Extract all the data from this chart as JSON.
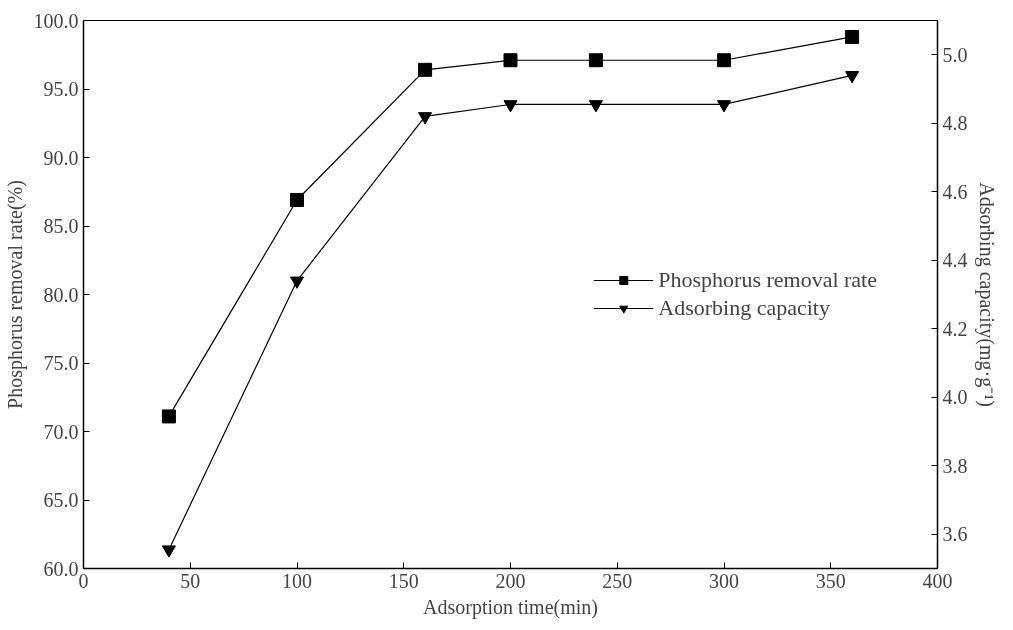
{
  "chart_data": {
    "type": "line",
    "xlabel": "Adsorption time(min)",
    "ylabel": "Phosphorus removal rate(%)",
    "y2label": "Adsorbing capacity(mg·g⁻¹)",
    "x": [
      40,
      100,
      160,
      200,
      240,
      300,
      360
    ],
    "series": [
      {
        "name": "Phosphorus removal rate",
        "color": "#000000",
        "marker": "square",
        "values": [
          71.1,
          86.9,
          96.4,
          97.1,
          97.1,
          97.1,
          98.8
        ]
      },
      {
        "name": "Adsorbing capacity",
        "color": "#000000",
        "marker": "triangle",
        "axis": "y2",
        "values": [
          3.555,
          4.34,
          4.82,
          4.855,
          4.855,
          4.855,
          4.94
        ]
      }
    ],
    "xlim": [
      0,
      400
    ],
    "xticks": [
      0,
      50,
      100,
      150,
      200,
      250,
      300,
      350,
      400
    ],
    "ylim": [
      60,
      100
    ],
    "yticks": [
      {
        "value": 60,
        "label": "60.0"
      },
      {
        "value": 65,
        "label": "65.0"
      },
      {
        "value": 70,
        "label": "70.0"
      },
      {
        "value": 75,
        "label": "75.0"
      },
      {
        "value": 80,
        "label": "80.0"
      },
      {
        "value": 85,
        "label": "85.0"
      },
      {
        "value": 90,
        "label": "90.0"
      },
      {
        "value": 95,
        "label": "95.0"
      },
      {
        "value": 100,
        "label": "100.0"
      }
    ],
    "y2lim": [
      3.5,
      5.1
    ],
    "y2ticks": [
      {
        "value": 3.6,
        "label": "3.6"
      },
      {
        "value": 3.8,
        "label": "3.8"
      },
      {
        "value": 4.0,
        "label": "4.0"
      },
      {
        "value": 4.2,
        "label": "4.2"
      },
      {
        "value": 4.4,
        "label": "4.4"
      },
      {
        "value": 4.6,
        "label": "4.6"
      },
      {
        "value": 4.8,
        "label": "4.8"
      },
      {
        "value": 5.0,
        "label": "5.0"
      }
    ],
    "legend": "right",
    "grid": false,
    "line_style": "solid"
  }
}
